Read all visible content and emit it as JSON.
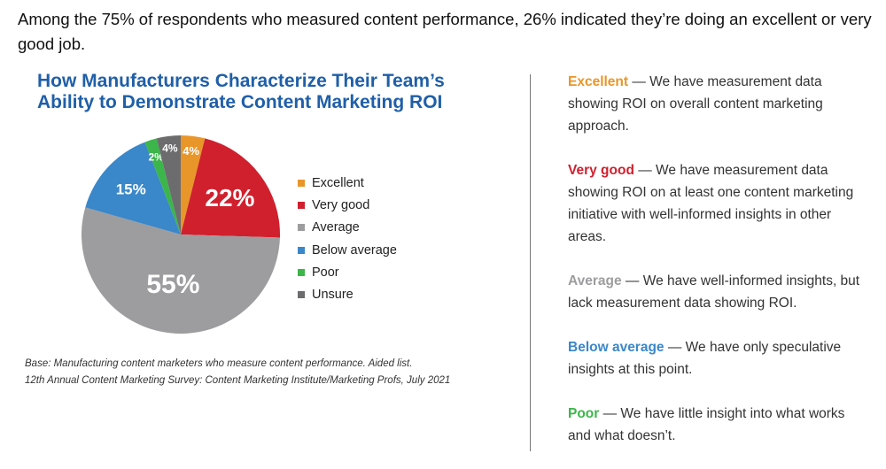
{
  "intro": "Among the 75% of respondents who measured content performance, 26% indicated they’re doing an excellent or very good job.",
  "chart_data": {
    "type": "pie",
    "title": "How Manufacturers Characterize Their Team’s Ability to Demonstrate Content Marketing ROI",
    "categories": [
      "Excellent",
      "Very good",
      "Average",
      "Below average",
      "Poor",
      "Unsure"
    ],
    "values": [
      4,
      22,
      55,
      15,
      2,
      4
    ],
    "labels": [
      "4%",
      "22%",
      "55%",
      "15%",
      "2%",
      "4%"
    ],
    "colors": [
      "#e8962a",
      "#d0202e",
      "#9d9d9f",
      "#3a87c9",
      "#3cb54a",
      "#6c6c6e"
    ],
    "legend_position": "right"
  },
  "notes": [
    "Base: Manufacturing content marketers who measure content performance. Aided list.",
    "12th Annual Content Marketing Survey: Content Marketing Institute/Marketing Profs, July 2021"
  ],
  "definitions": [
    {
      "term": "Excellent",
      "text": " — We have measurement data showing ROI on overall content marketing approach.",
      "color": "#e8962a"
    },
    {
      "term": "Very good",
      "text": " — We have measurement data showing ROI on at least one content marketing initiative with well-informed insights in other areas.",
      "color": "#d0202e"
    },
    {
      "term": "Average",
      "text": " — We have well-informed insights, but lack measurement data showing ROI.",
      "color": "#9d9d9f"
    },
    {
      "term": "Below average",
      "text": " — We have only speculative insights at this point.",
      "color": "#3a87c9"
    },
    {
      "term": "Poor",
      "text": " — We have little insight into what works and what doesn’t.",
      "color": "#3cb54a"
    }
  ]
}
